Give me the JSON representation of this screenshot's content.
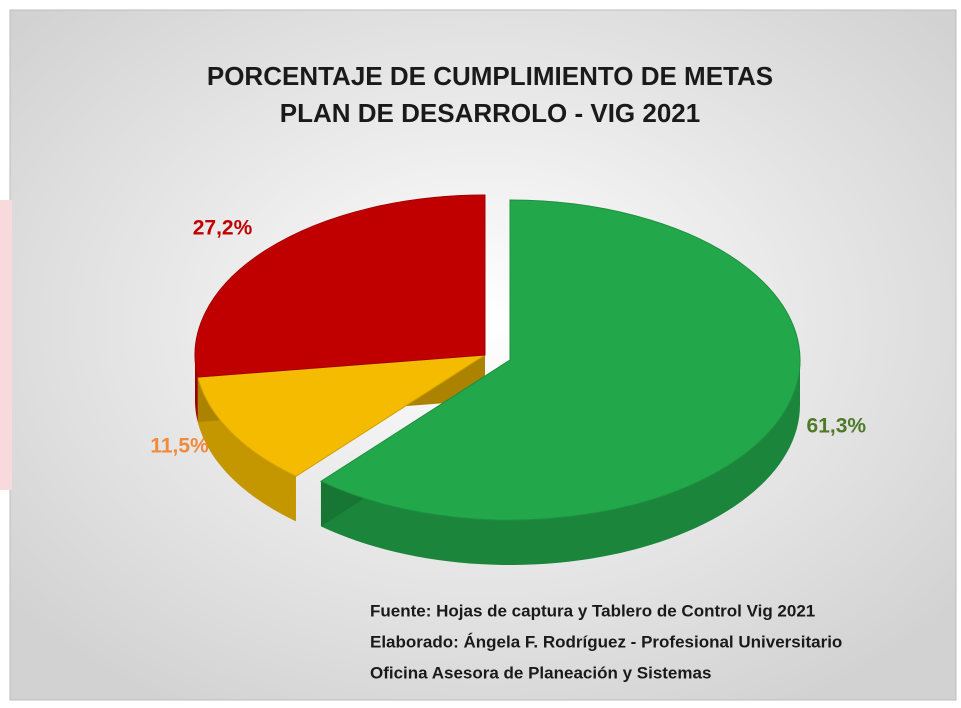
{
  "chart_data": {
    "type": "pie3d",
    "title": [
      "PORCENTAJE DE CUMPLIMIENTO DE METAS",
      "PLAN DE DESARROLO - VIG 2021"
    ],
    "values": [
      61.3,
      11.5,
      27.2
    ],
    "value_labels": [
      "61,3%",
      "11,5%",
      "27,2%"
    ],
    "colors": [
      "#22a84a",
      "#f5bb00",
      "#c00000"
    ],
    "label_colors": [
      "#4f7a28",
      "#f08a3c",
      "#c00000"
    ],
    "annotations": [
      "Fuente: Hojas de captura y Tablero de Control Vig 2021",
      "Elaborado: Ángela F. Rodríguez - Profesional Universitario",
      "Oficina Asesora de Planeación y Sistemas"
    ]
  }
}
